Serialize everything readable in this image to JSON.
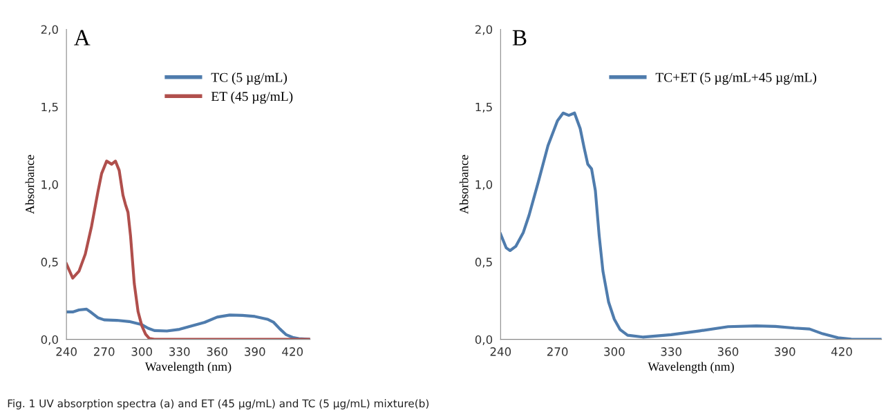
{
  "chart_data": [
    {
      "type": "line",
      "title": "A",
      "xlabel": "Wavelength (nm)",
      "ylabel": "Absorbance",
      "legend": "top right",
      "grid": false,
      "marker": "none",
      "line_style": "solid",
      "xlim": [
        240,
        434
      ],
      "xticks": [
        240,
        270,
        300,
        330,
        360,
        390,
        420
      ],
      "ylim": [
        0,
        2
      ],
      "yticks": [
        {
          "value": 0,
          "label": "0,0"
        },
        {
          "value": 0.5,
          "label": "0,5"
        },
        {
          "value": 1,
          "label": "1,0"
        },
        {
          "value": 1.5,
          "label": "1,5"
        },
        {
          "value": 2,
          "label": "2,0"
        }
      ],
      "annotations": [
        "Fig. 1 UV absorption spectra (a) and ET (45 µg/mL) and TC (5 µg/mL) mixture(b)"
      ],
      "series": [
        {
          "name": "TC (5 µg/mL)",
          "color": "#4f7cad",
          "x": [
            240,
            245,
            250,
            256,
            260,
            265,
            270,
            280,
            290,
            300,
            305,
            310,
            320,
            330,
            340,
            350,
            360,
            370,
            380,
            390,
            400,
            405,
            410,
            415,
            420,
            425,
            434
          ],
          "values": [
            0.177,
            0.177,
            0.19,
            0.195,
            0.172,
            0.14,
            0.126,
            0.123,
            0.115,
            0.095,
            0.072,
            0.057,
            0.054,
            0.065,
            0.088,
            0.11,
            0.144,
            0.157,
            0.155,
            0.148,
            0.13,
            0.11,
            0.067,
            0.03,
            0.013,
            0.005,
            0
          ]
        },
        {
          "name": "ET (45 µg/mL)",
          "color": "#b04f4c",
          "x": [
            240,
            245,
            250,
            255,
            260,
            265,
            268,
            272,
            276,
            279,
            282,
            285,
            287,
            289,
            291,
            294,
            297,
            300,
            303,
            306,
            310,
            434
          ],
          "values": [
            0.487,
            0.395,
            0.44,
            0.55,
            0.73,
            0.95,
            1.07,
            1.15,
            1.13,
            1.15,
            1.09,
            0.93,
            0.87,
            0.82,
            0.67,
            0.36,
            0.18,
            0.088,
            0.034,
            0.006,
            0,
            0
          ]
        }
      ]
    },
    {
      "type": "line",
      "title": "B",
      "xlabel": "Wavelength (nm)",
      "ylabel": "Absorbance",
      "legend": "top",
      "grid": false,
      "marker": "none",
      "line_style": "solid",
      "xlim": [
        240,
        441
      ],
      "xticks": [
        240,
        270,
        300,
        330,
        360,
        390,
        420
      ],
      "ylim": [
        0,
        2
      ],
      "yticks": [
        {
          "value": 0,
          "label": "0,0"
        },
        {
          "value": 0.5,
          "label": "0,5"
        },
        {
          "value": 1,
          "label": "1,0"
        },
        {
          "value": 1.5,
          "label": "1,5"
        },
        {
          "value": 2,
          "label": "2,0"
        }
      ],
      "series": [
        {
          "name": "TC+ET (5 µg/mL+45 µg/mL)",
          "color": "#4f7cad",
          "x": [
            240,
            243,
            245,
            248,
            252,
            255,
            260,
            265,
            270,
            273,
            276,
            279,
            282,
            284,
            286,
            288,
            290,
            292,
            294,
            297,
            300,
            303,
            307,
            315,
            330,
            345,
            360,
            375,
            385,
            395,
            403,
            410,
            418,
            425,
            441
          ],
          "values": [
            0.68,
            0.59,
            0.573,
            0.6,
            0.69,
            0.8,
            1.02,
            1.25,
            1.41,
            1.46,
            1.445,
            1.46,
            1.36,
            1.24,
            1.13,
            1.1,
            0.96,
            0.67,
            0.44,
            0.24,
            0.13,
            0.064,
            0.027,
            0.015,
            0.03,
            0.055,
            0.082,
            0.087,
            0.084,
            0.073,
            0.067,
            0.036,
            0.011,
            0.002,
            0
          ]
        }
      ]
    }
  ]
}
